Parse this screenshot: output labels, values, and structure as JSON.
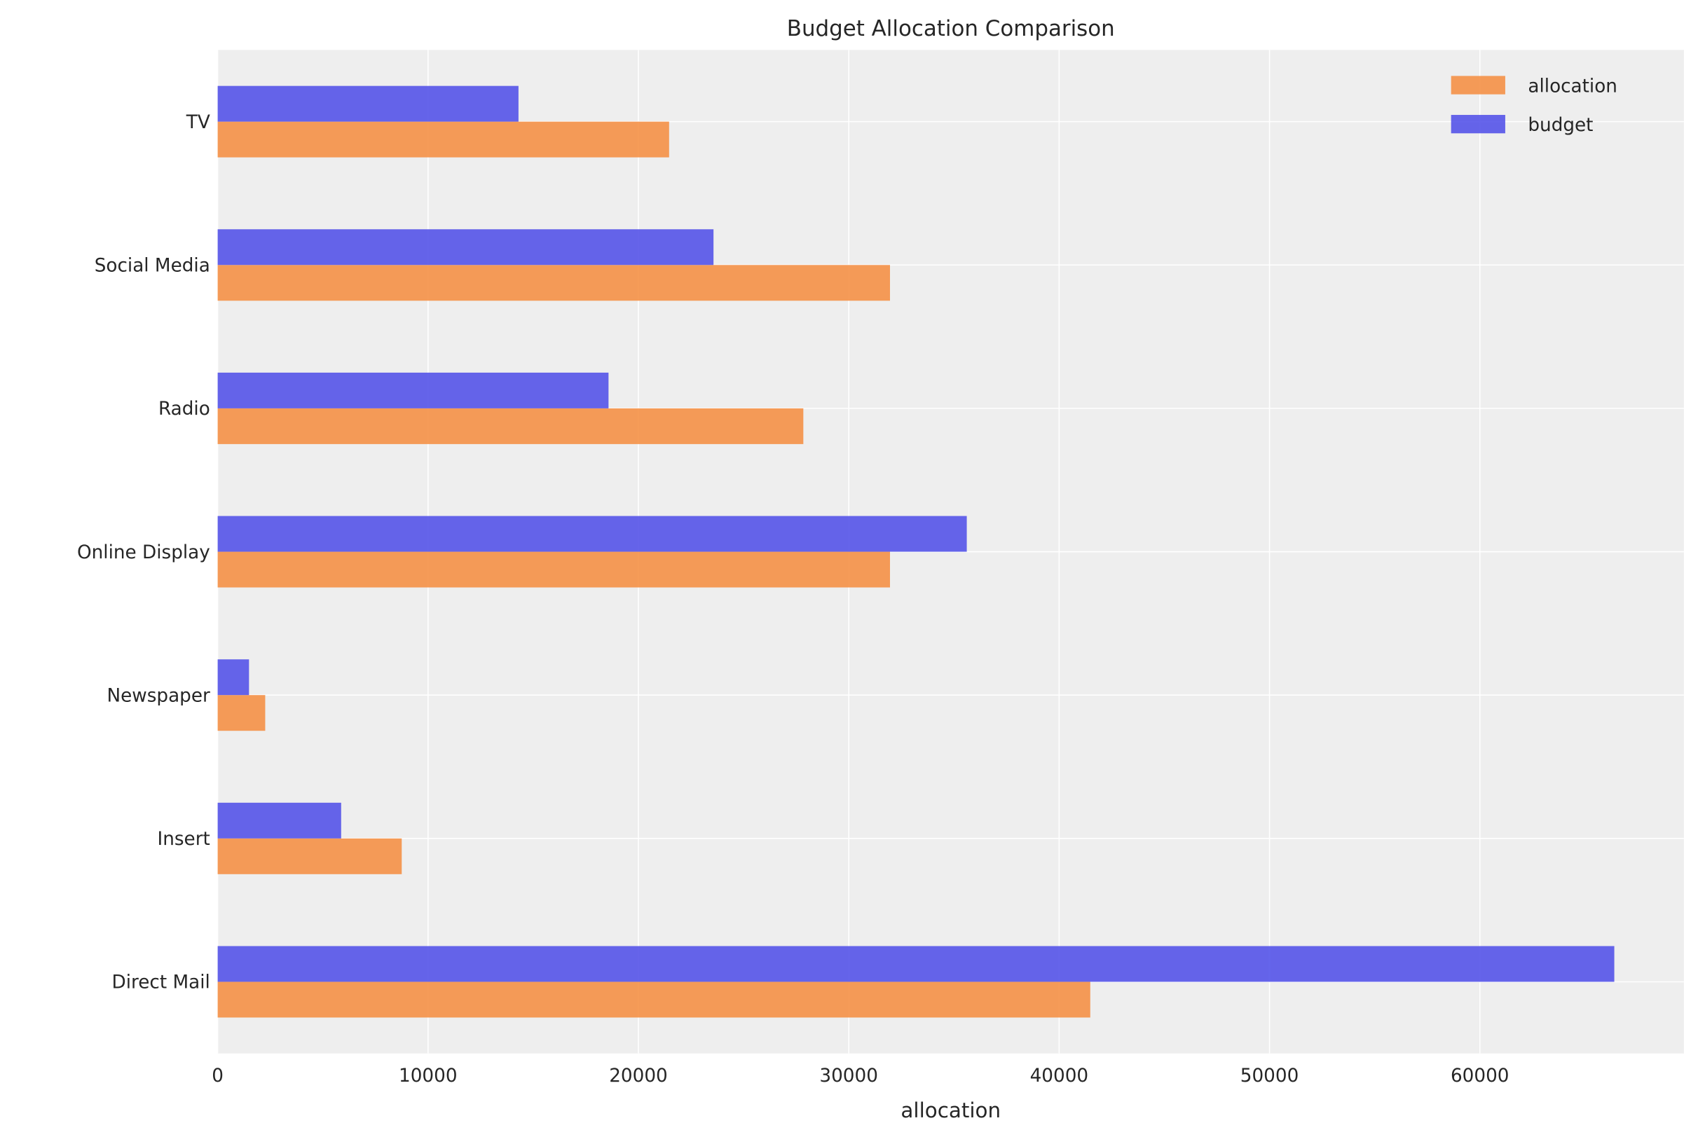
{
  "chart_data": {
    "type": "bar",
    "orientation": "horizontal",
    "title": "Budget Allocation Comparison",
    "xlabel": "allocation",
    "ylabel": "",
    "categories": [
      "Direct Mail",
      "Insert",
      "Newspaper",
      "Online Display",
      "Radio",
      "Social Media",
      "TV"
    ],
    "series": [
      {
        "name": "allocation",
        "color": "#f58b3c",
        "values": [
          41480,
          8750,
          2260,
          31960,
          27840,
          31960,
          21460
        ]
      },
      {
        "name": "budget",
        "color": "#4b4ae8",
        "values": [
          66390,
          5870,
          1490,
          35610,
          18580,
          23570,
          14300
        ]
      }
    ],
    "xlim": [
      0,
      69700
    ],
    "xticks": [
      0,
      10000,
      20000,
      30000,
      40000,
      50000,
      60000
    ],
    "xtick_labels": [
      "0",
      "10000",
      "20000",
      "30000",
      "40000",
      "50000",
      "60000"
    ],
    "grid": true,
    "legend": {
      "placement": "top-right",
      "entries": [
        "allocation",
        "budget"
      ]
    }
  }
}
